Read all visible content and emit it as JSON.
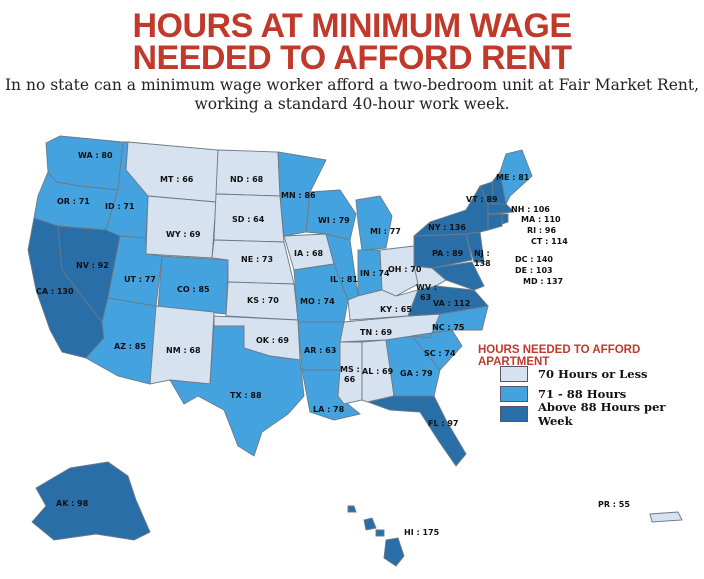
{
  "title_line1": "HOURS AT MINIMUM WAGE",
  "title_line2": "NEEDED TO AFFORD RENT",
  "subtitle_line1": "In no state can a minimum wage worker afford a two-bedroom unit at Fair Market Rent,",
  "subtitle_line2": "working a standard 40-hour work week.",
  "colors": {
    "low": "#d6e2f0",
    "mid": "#44a3df",
    "high": "#2a6ea8",
    "title": "#c0392b"
  },
  "legend": {
    "title": "HOURS NEEDED TO AFFORD APARTMENT",
    "items": [
      {
        "label": "70 Hours or Less",
        "color": "#d6e2f0"
      },
      {
        "label": "71 - 88 Hours",
        "color": "#44a3df"
      },
      {
        "label": "Above 88 Hours per Week",
        "color": "#2a6ea8"
      }
    ]
  },
  "states": {
    "WA": "WA : 80",
    "OR": "OR : 71",
    "CA": "CA : 130",
    "NV": "NV : 92",
    "ID": "ID : 71",
    "MT": "MT : 66",
    "WY": "WY : 69",
    "UT": "UT : 77",
    "AZ": "AZ : 85",
    "CO": "CO : 85",
    "NM": "NM : 68",
    "ND": "ND : 68",
    "SD": "SD : 64",
    "NE": "NE : 73",
    "KS": "KS : 70",
    "OK": "OK : 69",
    "TX": "TX : 88",
    "MN": "MN : 86",
    "IA": "IA : 68",
    "MO": "MO : 74",
    "AR": "AR : 63",
    "LA": "LA : 78",
    "WI": "WI : 79",
    "IL": "IL : 81",
    "MI": "MI : 77",
    "IN": "IN : 74",
    "OH": "OH : 70",
    "KY": "KY : 65",
    "TN": "TN : 69",
    "MS": "MS :\n66",
    "AL": "AL : 69",
    "GA": "GA : 79",
    "FL": "FL : 97",
    "SC": "SC : 74",
    "NC": "NC : 75",
    "VA": "VA : 112",
    "WV": "WV :\n63",
    "PA": "PA : 89",
    "NY": "NY : 136",
    "VT": "VT : 89",
    "ME": "ME : 81",
    "NH": "NH : 106",
    "MA": "MA : 110",
    "RI": "RI : 96",
    "CT": "CT : 114",
    "NJ": "NJ :\n138",
    "DC": "DC : 140",
    "DE": "DE : 103",
    "MD": "MD : 137",
    "AK": "AK : 98",
    "HI": "HI : 175",
    "PR": "PR : 55"
  }
}
